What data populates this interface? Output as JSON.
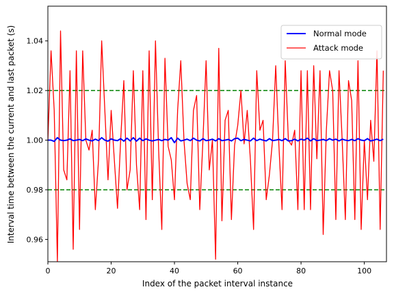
{
  "chart_data": {
    "type": "line",
    "title": "",
    "xlabel": "Index of the packet interval instance",
    "ylabel": "Interval time between the current and last packet (s)",
    "xlim": [
      0,
      107
    ],
    "ylim": [
      0.951,
      1.054
    ],
    "x_ticks": [
      0,
      20,
      40,
      60,
      80,
      100
    ],
    "x_tick_labels": [
      "0",
      "20",
      "40",
      "60",
      "80",
      "100"
    ],
    "y_ticks": [
      0.96,
      0.98,
      1.0,
      1.02,
      1.04
    ],
    "y_tick_labels": [
      "0.96",
      "0.98",
      "1.00",
      "1.02",
      "1.04"
    ],
    "legend": {
      "position": "upper right"
    },
    "reference_lines": [
      {
        "y": 1.02,
        "style": "dashed",
        "color": "#008000"
      },
      {
        "y": 0.98,
        "style": "dashed",
        "color": "#008000"
      }
    ],
    "series": [
      {
        "name": "Normal mode",
        "color": "#0000ff",
        "line_width": 2,
        "x": [
          0,
          1,
          2,
          3,
          4,
          5,
          6,
          7,
          8,
          9,
          10,
          11,
          12,
          13,
          14,
          15,
          16,
          17,
          18,
          19,
          20,
          21,
          22,
          23,
          24,
          25,
          26,
          27,
          28,
          29,
          30,
          31,
          32,
          33,
          34,
          35,
          36,
          37,
          38,
          39,
          40,
          41,
          42,
          43,
          44,
          45,
          46,
          47,
          48,
          49,
          50,
          51,
          52,
          53,
          54,
          55,
          56,
          57,
          58,
          59,
          60,
          61,
          62,
          63,
          64,
          65,
          66,
          67,
          68,
          69,
          70,
          71,
          72,
          73,
          74,
          75,
          76,
          77,
          78,
          79,
          80,
          81,
          82,
          83,
          84,
          85,
          86,
          87,
          88,
          89,
          90,
          91,
          92,
          93,
          94,
          95,
          96,
          97,
          98,
          99,
          100,
          101,
          102,
          103,
          104,
          105,
          106
        ],
        "values": [
          1.0,
          1.0,
          0.9995,
          1.001,
          1.0,
          0.9998,
          1.0,
          1.0005,
          0.9998,
          1.0,
          1.0003,
          0.9998,
          1.0005,
          1.0,
          0.9997,
          1.0004,
          0.9998,
          1.001,
          1.0,
          0.9996,
          1.0005,
          1.0,
          0.9998,
          1.0006,
          0.9996,
          1.0008,
          0.9997,
          1.001,
          0.9996,
          1.0008,
          0.9998,
          1.0005,
          1.0,
          0.9997,
          1.0,
          1.0003,
          0.9998,
          1.0003,
          1.0,
          1.001,
          0.999,
          1.0008,
          0.9997,
          1.0,
          1.0004,
          0.9998,
          1.0008,
          1.0,
          0.9997,
          1.0006,
          0.9998,
          1.0,
          1.0004,
          0.9997,
          1.0006,
          0.9998,
          1.0,
          1.0003,
          0.9997,
          1.0006,
          1.0008,
          0.9998,
          1.0003,
          1.0,
          0.9997,
          1.0008,
          0.9998,
          1.0004,
          1.0,
          0.9997,
          1.0006,
          0.9998,
          1.0,
          1.0003,
          0.9998,
          1.0006,
          0.9997,
          0.9998,
          1.0004,
          0.9997,
          1.0004,
          1.0,
          1.0008,
          0.9997,
          1.0006,
          0.9998,
          1.0,
          1.0003,
          0.9998,
          1.0006,
          1.0,
          1.0004,
          0.9997,
          1.0004,
          1.0,
          0.9998,
          1.0003,
          0.9998,
          1.0006,
          1.0,
          0.9998,
          1.0006,
          0.9997,
          1.0,
          1.0004,
          0.9998,
          1.0004
        ]
      },
      {
        "name": "Attack mode",
        "color": "#ff0000",
        "line_width": 1.3,
        "x": [
          0,
          1,
          2,
          3,
          4,
          5,
          6,
          7,
          8,
          9,
          10,
          11,
          12,
          13,
          14,
          15,
          16,
          17,
          18,
          19,
          20,
          21,
          22,
          23,
          24,
          25,
          26,
          27,
          28,
          29,
          30,
          31,
          32,
          33,
          34,
          35,
          36,
          37,
          38,
          39,
          40,
          41,
          42,
          43,
          44,
          45,
          46,
          47,
          48,
          49,
          50,
          51,
          52,
          53,
          54,
          55,
          56,
          57,
          58,
          59,
          60,
          61,
          62,
          63,
          64,
          65,
          66,
          67,
          68,
          69,
          70,
          71,
          72,
          73,
          74,
          75,
          76,
          77,
          78,
          79,
          80,
          81,
          82,
          83,
          84,
          85,
          86,
          87,
          88,
          89,
          90,
          91,
          92,
          93,
          94,
          95,
          96,
          97,
          98,
          99,
          100,
          101,
          102,
          103,
          104,
          105,
          106
        ],
        "values": [
          1.0,
          1.036,
          1.012,
          0.951,
          1.044,
          0.988,
          0.984,
          1.028,
          0.956,
          1.036,
          0.964,
          1.036,
          1.0,
          0.996,
          1.004,
          0.972,
          0.992,
          1.04,
          1.012,
          0.984,
          1.012,
          0.992,
          0.9725,
          1.0,
          1.024,
          0.98,
          0.988,
          1.028,
          0.99,
          0.972,
          1.028,
          0.968,
          1.036,
          0.976,
          1.04,
          0.996,
          0.964,
          1.033,
          0.9975,
          0.992,
          0.976,
          1.012,
          1.032,
          1.0,
          0.9825,
          0.976,
          1.012,
          1.018,
          0.972,
          1.0,
          1.032,
          0.988,
          1.0,
          0.952,
          1.037,
          0.9675,
          1.008,
          1.012,
          0.968,
          0.998,
          1.006,
          1.02,
          0.9985,
          1.012,
          0.992,
          0.964,
          1.028,
          1.004,
          1.008,
          0.976,
          0.986,
          1.0,
          1.03,
          0.998,
          0.972,
          1.032,
          1.0,
          0.998,
          1.004,
          0.972,
          1.028,
          0.972,
          1.028,
          0.972,
          1.03,
          0.9925,
          1.028,
          0.962,
          1.004,
          1.028,
          1.02,
          0.968,
          1.028,
          1.0,
          0.968,
          1.024,
          1.016,
          0.968,
          1.032,
          0.964,
          1.0,
          0.976,
          1.008,
          0.9915,
          1.036,
          0.964,
          1.028
        ]
      }
    ]
  }
}
